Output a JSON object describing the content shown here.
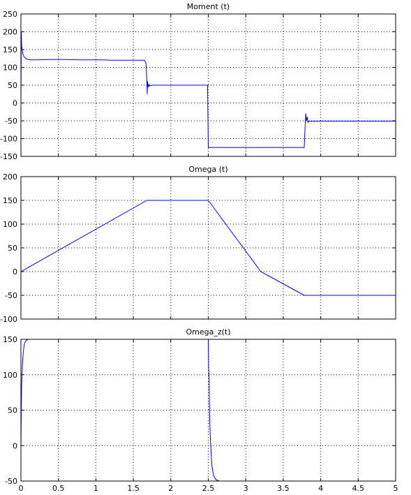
{
  "chart_data": [
    {
      "type": "line",
      "title": "Moment (t)",
      "xlabel": "",
      "ylabel": "",
      "xlim": [
        0,
        5
      ],
      "ylim": [
        -150,
        250
      ],
      "x_ticks": [
        "0",
        "0.5",
        "1",
        "1.5",
        "2",
        "2.5",
        "3",
        "3.5",
        "4",
        "4.5",
        "5"
      ],
      "y_ticks": [
        "-150",
        "-100",
        "-50",
        "0",
        "50",
        "100",
        "150",
        "200",
        "250"
      ],
      "x_tick_labels_visible": false,
      "grid": true,
      "color": "#0000ff",
      "series": [
        {
          "x": [
            0,
            0.005,
            0.01,
            0.02,
            0.03,
            0.04,
            0.05,
            0.06,
            0.07,
            0.08,
            0.1,
            0.13,
            0.2,
            0.4,
            0.6,
            0.8,
            1.0,
            1.1,
            1.2,
            1.4,
            1.6,
            1.65,
            1.67,
            1.68,
            1.685,
            1.69,
            1.7,
            1.71,
            1.72,
            1.75,
            2.0,
            2.3,
            2.49,
            2.5,
            2.51,
            2.8,
            3.1,
            3.4,
            3.7,
            3.78,
            3.79,
            3.8,
            3.81,
            3.82,
            3.83,
            3.84,
            3.86,
            3.9,
            4.2,
            4.6,
            5.0
          ],
          "y": [
            0,
            200,
            160,
            145,
            135,
            130,
            128,
            126,
            124,
            123,
            122,
            121,
            121,
            122,
            122,
            121,
            121,
            121,
            120,
            120,
            120,
            120,
            110,
            60,
            25,
            60,
            45,
            52,
            48,
            50,
            50,
            50,
            50,
            -125,
            -125,
            -125,
            -125,
            -125,
            -125,
            -125,
            -75,
            -30,
            -50,
            -40,
            -55,
            -50,
            -52,
            -51,
            -51,
            -51,
            -51
          ]
        }
      ]
    },
    {
      "type": "line",
      "title": "Omega (t)",
      "xlabel": "",
      "ylabel": "",
      "xlim": [
        0,
        5
      ],
      "ylim": [
        -100,
        200
      ],
      "x_ticks": [
        "0",
        "0.5",
        "1",
        "1.5",
        "2",
        "2.5",
        "3",
        "3.5",
        "4",
        "4.5",
        "5"
      ],
      "y_ticks": [
        "-100",
        "-50",
        "0",
        "50",
        "100",
        "150",
        "200"
      ],
      "x_tick_labels_visible": false,
      "grid": true,
      "color": "#0000ff",
      "series": [
        {
          "x": [
            0,
            1.68,
            2.5,
            3.2,
            3.78,
            5.0
          ],
          "y": [
            0,
            150,
            150,
            0,
            -50,
            -50
          ]
        }
      ]
    },
    {
      "type": "line",
      "title": "Omega_z(t)",
      "xlabel": "",
      "ylabel": "",
      "xlim": [
        0,
        5
      ],
      "ylim": [
        -50,
        150
      ],
      "x_ticks": [
        "0",
        "0.5",
        "1",
        "1.5",
        "2",
        "2.5",
        "3",
        "3.5",
        "4",
        "4.5",
        "5"
      ],
      "y_ticks": [
        "-50",
        "0",
        "50",
        "100",
        "150"
      ],
      "x_tick_labels_visible": true,
      "grid": true,
      "color": "#0000ff",
      "series": [
        {
          "x": [
            0,
            0.005,
            0.01,
            0.02,
            0.03,
            0.04,
            0.05,
            0.06,
            0.08,
            0.1,
            0.2,
            1.0,
            2.0,
            2.49,
            2.5,
            2.505,
            2.51,
            2.515,
            2.52,
            2.53,
            2.54,
            2.55,
            2.57,
            2.6,
            2.65,
            3.0,
            4.0,
            5.0
          ],
          "y": [
            0,
            55,
            85,
            115,
            130,
            140,
            145,
            147,
            149,
            150,
            150,
            150,
            150,
            150,
            150,
            110,
            100,
            60,
            30,
            5,
            -15,
            -30,
            -42,
            -48,
            -50,
            -50,
            -50,
            -50
          ]
        }
      ]
    }
  ]
}
